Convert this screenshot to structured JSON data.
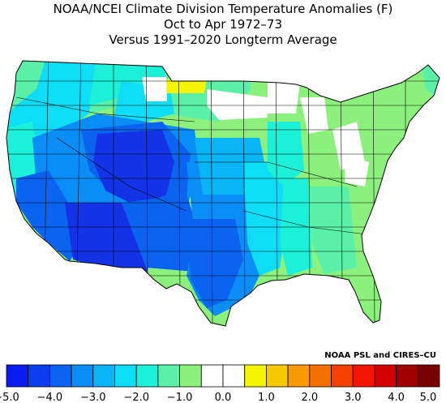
{
  "title": {
    "line1": "NOAA/NCEI Climate Division Temperature Anomalies (F)",
    "line2": "Oct to Apr 1972–73",
    "line3": "Versus 1991–2020 Longterm Average"
  },
  "credit": "NOAA PSL and CIRES–CU",
  "legend": {
    "labels": [
      "−5.0",
      "−4.0",
      "−3.0",
      "−2.0",
      "−1.0",
      "0.0",
      "1.0",
      "2.0",
      "3.0",
      "4.0",
      "5.0"
    ],
    "colors": [
      "#0a1cf0",
      "#0a3ff0",
      "#0a64f0",
      "#0a8df5",
      "#0ab5f5",
      "#0fdcf5",
      "#1cf0d8",
      "#5af0a8",
      "#8cf07c",
      "#ffffff",
      "#ffffff",
      "#f5f500",
      "#f5c800",
      "#f59b00",
      "#f56e00",
      "#f54000",
      "#f51400",
      "#d20000",
      "#a00000",
      "#780000"
    ]
  },
  "map_colors": {
    "deep_blue": "#1433e6",
    "blue": "#0a64f0",
    "mid_blue": "#0a8df5",
    "light_blue": "#0ab5f5",
    "cyan": "#0fdcf5",
    "teal": "#1cf0d8",
    "sea_green": "#5af0a8",
    "light_green": "#8cf07c",
    "white": "#ffffff",
    "yellow": "#f5f500"
  },
  "map_icon": "us-climate-division-map"
}
